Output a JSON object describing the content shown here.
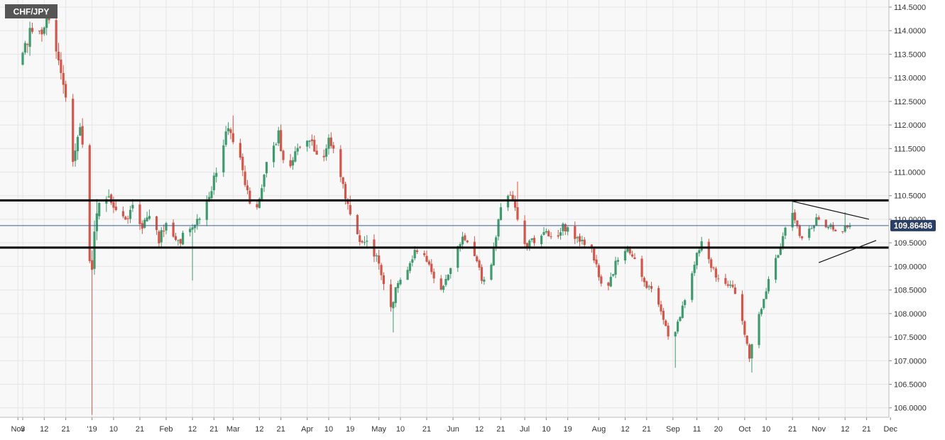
{
  "symbol_label": "CHF/JPY",
  "colors": {
    "background": "#f8f8f8",
    "grid": "#e6e6e6",
    "axis_bg": "#ffffff",
    "axis_text": "#333333",
    "bull": "#3f9a6e",
    "bear": "#d2574a",
    "level_line": "#000000",
    "price_line": "#3b5c9a",
    "price_tag_bg": "#2b3f66",
    "symbol_bg": "#555555"
  },
  "chart_data": {
    "type": "candlestick",
    "title": "CHF/JPY",
    "ylim": [
      105.8,
      114.65
    ],
    "y_ticks": [
      "114.5000",
      "114.0000",
      "113.5000",
      "113.0000",
      "112.5000",
      "112.0000",
      "111.5000",
      "111.0000",
      "110.5000",
      "110.0000",
      "109.5000",
      "109.0000",
      "108.5000",
      "108.0000",
      "107.5000",
      "107.0000",
      "106.5000",
      "106.0000"
    ],
    "x_ticks": [
      {
        "label": "Nov",
        "day": -2
      },
      {
        "label": "3",
        "day": 0
      },
      {
        "label": "12",
        "day": 9
      },
      {
        "label": "21",
        "day": 18
      },
      {
        "label": "'19",
        "day": 29
      },
      {
        "label": "10",
        "day": 38
      },
      {
        "label": "21",
        "day": 49
      },
      {
        "label": "Feb",
        "day": 60
      },
      {
        "label": "12",
        "day": 71
      },
      {
        "label": "21",
        "day": 80
      },
      {
        "label": "Mar",
        "day": 88
      },
      {
        "label": "12",
        "day": 99
      },
      {
        "label": "21",
        "day": 108
      },
      {
        "label": "Apr",
        "day": 119
      },
      {
        "label": "10",
        "day": 128
      },
      {
        "label": "19",
        "day": 137
      },
      {
        "label": "May",
        "day": 149
      },
      {
        "label": "10",
        "day": 158
      },
      {
        "label": "21",
        "day": 169
      },
      {
        "label": "Jun",
        "day": 180
      },
      {
        "label": "12",
        "day": 191
      },
      {
        "label": "21",
        "day": 200
      },
      {
        "label": "Jul",
        "day": 210
      },
      {
        "label": "10",
        "day": 219
      },
      {
        "label": "19",
        "day": 228
      },
      {
        "label": "Aug",
        "day": 241
      },
      {
        "label": "12",
        "day": 252
      },
      {
        "label": "21",
        "day": 261
      },
      {
        "label": "Sep",
        "day": 272
      },
      {
        "label": "11",
        "day": 282
      },
      {
        "label": "20",
        "day": 291
      },
      {
        "label": "Oct",
        "day": 302
      },
      {
        "label": "10",
        "day": 311
      },
      {
        "label": "21",
        "day": 322
      },
      {
        "label": "Nov",
        "day": 333
      },
      {
        "label": "12",
        "day": 344
      },
      {
        "label": "21",
        "day": 353
      },
      {
        "label": "Dec",
        "day": 363
      }
    ],
    "anchors": [
      [
        0,
        113.3
      ],
      [
        3,
        113.8
      ],
      [
        5,
        114.1
      ],
      [
        6,
        114.25
      ],
      [
        9,
        113.85
      ],
      [
        11,
        114.3
      ],
      [
        13,
        114.1
      ],
      [
        16,
        113.4
      ],
      [
        19,
        112.5
      ],
      [
        22,
        111.2
      ],
      [
        25,
        111.9
      ],
      [
        27,
        111.5
      ],
      [
        29,
        109.2
      ],
      [
        30,
        108.9
      ],
      [
        32,
        110.2
      ],
      [
        34,
        110.7
      ],
      [
        37,
        110.5
      ],
      [
        40,
        110.1
      ],
      [
        44,
        110.05
      ],
      [
        48,
        110.3
      ],
      [
        51,
        109.8
      ],
      [
        55,
        110.2
      ],
      [
        58,
        109.6
      ],
      [
        62,
        109.9
      ],
      [
        66,
        109.55
      ],
      [
        70,
        109.7
      ],
      [
        74,
        109.95
      ],
      [
        78,
        110.35
      ],
      [
        82,
        111.0
      ],
      [
        85,
        111.5
      ],
      [
        87,
        112.0
      ],
      [
        89,
        111.7
      ],
      [
        92,
        111.25
      ],
      [
        96,
        110.3
      ],
      [
        99,
        110.3
      ],
      [
        103,
        111.2
      ],
      [
        106,
        111.6
      ],
      [
        108,
        111.8
      ],
      [
        111,
        111.0
      ],
      [
        114,
        111.3
      ],
      [
        117,
        111.6
      ],
      [
        120,
        111.75
      ],
      [
        123,
        111.5
      ],
      [
        126,
        111.05
      ],
      [
        129,
        111.8
      ],
      [
        131,
        111.4
      ],
      [
        134,
        110.95
      ],
      [
        137,
        110.3
      ],
      [
        140,
        109.7
      ],
      [
        144,
        109.55
      ],
      [
        147,
        109.45
      ],
      [
        150,
        109.0
      ],
      [
        153,
        108.4
      ],
      [
        155,
        108.15
      ],
      [
        158,
        108.6
      ],
      [
        161,
        108.8
      ],
      [
        164,
        109.2
      ],
      [
        167,
        109.4
      ],
      [
        171,
        109.05
      ],
      [
        174,
        108.6
      ],
      [
        177,
        108.55
      ],
      [
        180,
        109.0
      ],
      [
        183,
        109.4
      ],
      [
        186,
        109.6
      ],
      [
        189,
        109.3
      ],
      [
        192,
        108.9
      ],
      [
        195,
        108.5
      ],
      [
        198,
        109.4
      ],
      [
        201,
        110.2
      ],
      [
        203,
        110.4
      ],
      [
        206,
        110.5
      ],
      [
        208,
        110.0
      ],
      [
        211,
        109.45
      ],
      [
        214,
        109.5
      ],
      [
        217,
        109.6
      ],
      [
        220,
        109.7
      ],
      [
        223,
        109.5
      ],
      [
        226,
        109.8
      ],
      [
        229,
        109.85
      ],
      [
        232,
        109.6
      ],
      [
        235,
        109.55
      ],
      [
        238,
        109.5
      ],
      [
        241,
        109.0
      ],
      [
        244,
        108.5
      ],
      [
        247,
        108.7
      ],
      [
        250,
        109.2
      ],
      [
        253,
        109.4
      ],
      [
        256,
        109.2
      ],
      [
        259,
        108.9
      ],
      [
        262,
        108.6
      ],
      [
        265,
        108.4
      ],
      [
        268,
        108.0
      ],
      [
        271,
        107.55
      ],
      [
        273,
        107.3
      ],
      [
        276,
        108.0
      ],
      [
        279,
        108.5
      ],
      [
        282,
        109.1
      ],
      [
        285,
        109.5
      ],
      [
        288,
        109.15
      ],
      [
        291,
        108.8
      ],
      [
        294,
        108.7
      ],
      [
        298,
        108.55
      ],
      [
        301,
        108.3
      ],
      [
        303,
        107.5
      ],
      [
        305,
        107.1
      ],
      [
        308,
        107.9
      ],
      [
        311,
        108.3
      ],
      [
        314,
        108.9
      ],
      [
        317,
        109.3
      ],
      [
        319,
        109.6
      ],
      [
        321,
        110.1
      ],
      [
        323,
        110.2
      ],
      [
        326,
        109.7
      ],
      [
        328,
        109.4
      ],
      [
        330,
        109.75
      ],
      [
        333,
        110.0
      ],
      [
        336,
        109.8
      ],
      [
        339,
        109.9
      ],
      [
        342,
        109.6
      ],
      [
        345,
        109.86
      ]
    ],
    "spikes": [
      {
        "day": 29,
        "low": 105.85
      },
      {
        "day": 34,
        "high": 110.9
      },
      {
        "day": 61,
        "high": 110.55
      },
      {
        "day": 71,
        "low": 108.7
      },
      {
        "day": 88,
        "high": 112.2
      },
      {
        "day": 137,
        "high": 110.5
      },
      {
        "day": 155,
        "low": 107.6
      },
      {
        "day": 207,
        "high": 110.8
      },
      {
        "day": 273,
        "low": 106.85
      },
      {
        "day": 284,
        "high": 109.6
      },
      {
        "day": 305,
        "low": 106.75
      },
      {
        "day": 322,
        "high": 110.4
      },
      {
        "day": 344,
        "high": 110.15
      }
    ],
    "volatility": [
      [
        0,
        0.35
      ],
      [
        28,
        0.35
      ],
      [
        30,
        0.6
      ],
      [
        40,
        0.25
      ],
      [
        80,
        0.25
      ],
      [
        140,
        0.25
      ],
      [
        200,
        0.22
      ],
      [
        330,
        0.15
      ],
      [
        346,
        0.12
      ]
    ],
    "last_candle_day": 346,
    "current_price": 109.86486,
    "current_price_label": "109.86486",
    "horizontal_levels": [
      110.4,
      109.4
    ],
    "triangle": {
      "upper": {
        "from": [
          322,
          110.38
        ],
        "to": [
          354,
          110.0
        ]
      },
      "lower": {
        "from": [
          333,
          109.08
        ],
        "to": [
          357,
          109.55
        ]
      }
    }
  }
}
